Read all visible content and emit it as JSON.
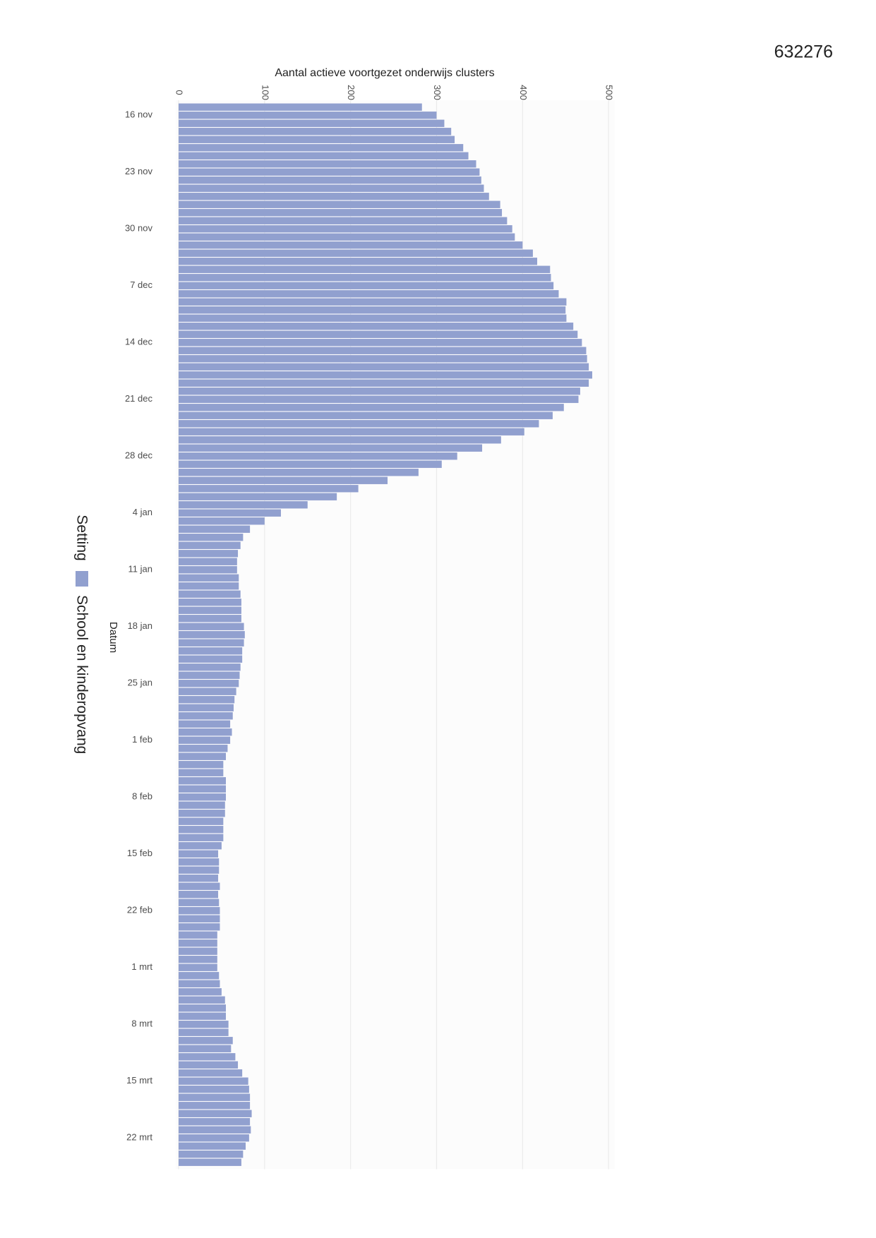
{
  "document_id": "632276",
  "chart_data": {
    "type": "bar",
    "orientation": "horizontal",
    "xlabel": "Aantal actieve voortgezet onderwijs clusters",
    "ylabel": "Datum",
    "legend_title": "Setting",
    "legend": "left",
    "grid": true,
    "xlim": [
      0,
      504
    ],
    "xticks": [
      0,
      100,
      200,
      300,
      400,
      500
    ],
    "categories": [
      null,
      "16 nov",
      null,
      null,
      null,
      null,
      null,
      null,
      "23 nov",
      null,
      null,
      null,
      null,
      null,
      null,
      "30 nov",
      null,
      null,
      null,
      null,
      null,
      null,
      "7 dec",
      null,
      null,
      null,
      null,
      null,
      null,
      "14 dec",
      null,
      null,
      null,
      null,
      null,
      null,
      "21 dec",
      null,
      null,
      null,
      null,
      null,
      null,
      "28 dec",
      null,
      null,
      null,
      null,
      null,
      null,
      "4 jan",
      null,
      null,
      null,
      null,
      null,
      null,
      "11 jan",
      null,
      null,
      null,
      null,
      null,
      null,
      "18 jan",
      null,
      null,
      null,
      null,
      null,
      null,
      "25 jan",
      null,
      null,
      null,
      null,
      null,
      null,
      "1 feb",
      null,
      null,
      null,
      null,
      null,
      null,
      "8 feb",
      null,
      null,
      null,
      null,
      null,
      null,
      "15 feb",
      null,
      null,
      null,
      null,
      null,
      null,
      "22 feb",
      null,
      null,
      null,
      null,
      null,
      null,
      "1 mrt",
      null,
      null,
      null,
      null,
      null,
      null,
      "8 mrt",
      null,
      null,
      null,
      null,
      null,
      null,
      "15 mrt",
      null,
      null,
      null,
      null,
      null,
      null,
      "22 mrt",
      null,
      null,
      null
    ],
    "series": [
      {
        "name": "School en kinderopvang",
        "color": "#91a0cf",
        "values": [
          283,
          300,
          309,
          317,
          321,
          331,
          337,
          346,
          350,
          352,
          355,
          361,
          374,
          376,
          382,
          388,
          391,
          400,
          412,
          417,
          432,
          433,
          436,
          442,
          451,
          450,
          451,
          459,
          464,
          469,
          474,
          475,
          477,
          481,
          477,
          467,
          465,
          448,
          435,
          419,
          402,
          375,
          353,
          324,
          306,
          279,
          243,
          209,
          184,
          150,
          119,
          100,
          83,
          75,
          72,
          69,
          68,
          68,
          70,
          70,
          72,
          73,
          73,
          73,
          76,
          77,
          76,
          74,
          74,
          72,
          71,
          70,
          67,
          65,
          64,
          63,
          60,
          62,
          60,
          57,
          55,
          52,
          52,
          55,
          55,
          55,
          54,
          54,
          52,
          52,
          52,
          50,
          46,
          47,
          47,
          46,
          48,
          46,
          47,
          48,
          48,
          48,
          45,
          45,
          45,
          45,
          45,
          47,
          48,
          50,
          54,
          55,
          55,
          58,
          58,
          63,
          61,
          66,
          69,
          74,
          81,
          82,
          83,
          83,
          85,
          83,
          84,
          82,
          78,
          75,
          73
        ]
      }
    ]
  }
}
